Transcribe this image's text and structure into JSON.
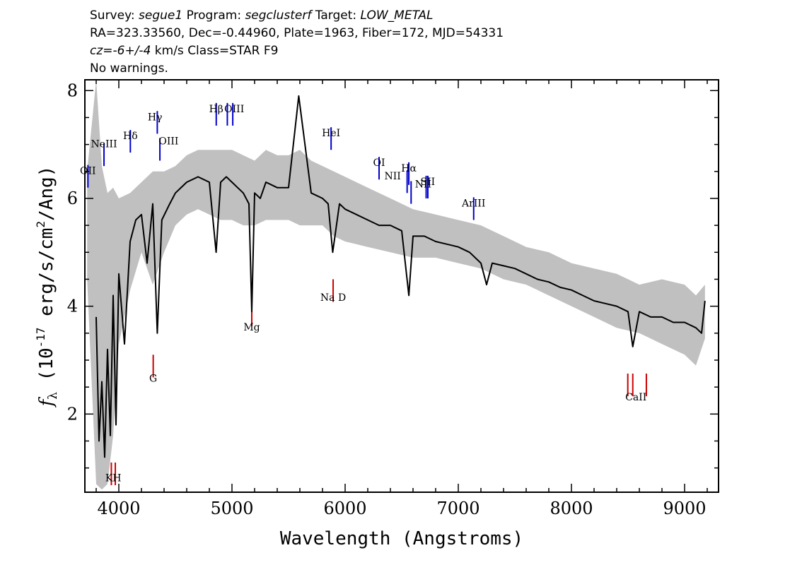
{
  "header": {
    "survey_label": "Survey: ",
    "survey": "segue1",
    "program_label": " Program: ",
    "program": "segclusterf",
    "target_label": " Target: ",
    "target": "LOW_METAL",
    "line2": "RA=323.33560, Dec=-0.44960, Plate=1963, Fiber=172, MJD=54331",
    "cz": "cz=-6+/-4",
    "line3_rest": " km/s Class=STAR F9",
    "line4": "No warnings."
  },
  "chart_data": {
    "type": "line",
    "xlabel": "Wavelength (Angstroms)",
    "ylabel_prefix": "f",
    "ylabel_sub": "λ",
    "ylabel_main": " (10",
    "ylabel_exp1": "-17",
    "ylabel_mid": " erg/s/cm",
    "ylabel_exp2": "2",
    "ylabel_end": "/Ang)",
    "xlim": [
      3700,
      9300
    ],
    "ylim": [
      0.55,
      8.2
    ],
    "xticks": [
      4000,
      5000,
      6000,
      7000,
      8000,
      9000
    ],
    "yticks": [
      2,
      4,
      6,
      8
    ],
    "colors": {
      "flux": "#000000",
      "error": "#c0c0c0",
      "emission": "#0000cc",
      "absorption": "#cc0000"
    },
    "series": [
      {
        "role": "flux",
        "x": [
          3800,
          3825,
          3850,
          3875,
          3900,
          3925,
          3950,
          3975,
          4000,
          4050,
          4100,
          4150,
          4200,
          4250,
          4300,
          4340,
          4380,
          4450,
          4500,
          4600,
          4700,
          4800,
          4860,
          4900,
          4950,
          5000,
          5050,
          5100,
          5150,
          5175,
          5200,
          5250,
          5300,
          5400,
          5500,
          5590,
          5700,
          5800,
          5850,
          5890,
          5950,
          6000,
          6100,
          6200,
          6300,
          6400,
          6500,
          6563,
          6600,
          6700,
          6800,
          6900,
          7000,
          7100,
          7200,
          7250,
          7300,
          7400,
          7500,
          7600,
          7700,
          7800,
          7900,
          8000,
          8100,
          8200,
          8300,
          8400,
          8500,
          8542,
          8600,
          8700,
          8800,
          8900,
          9000,
          9100,
          9150,
          9180
        ],
        "y": [
          3.8,
          1.5,
          2.6,
          1.2,
          3.2,
          1.6,
          4.2,
          1.8,
          4.6,
          3.3,
          5.2,
          5.6,
          5.7,
          4.8,
          5.9,
          3.5,
          5.6,
          5.9,
          6.1,
          6.3,
          6.4,
          6.3,
          5.0,
          6.3,
          6.4,
          6.3,
          6.2,
          6.1,
          5.9,
          3.9,
          6.1,
          6.0,
          6.3,
          6.2,
          6.2,
          7.9,
          6.1,
          6.0,
          5.9,
          5.0,
          5.9,
          5.8,
          5.7,
          5.6,
          5.5,
          5.5,
          5.4,
          4.2,
          5.3,
          5.3,
          5.2,
          5.15,
          5.1,
          5.0,
          4.8,
          4.4,
          4.8,
          4.75,
          4.7,
          4.6,
          4.5,
          4.45,
          4.35,
          4.3,
          4.2,
          4.1,
          4.05,
          4.0,
          3.9,
          3.25,
          3.9,
          3.8,
          3.8,
          3.7,
          3.7,
          3.6,
          3.5,
          4.1
        ]
      },
      {
        "role": "error",
        "x": [
          3720,
          3800,
          3850,
          3900,
          3950,
          4000,
          4100,
          4200,
          4300,
          4400,
          4500,
          4600,
          4700,
          4800,
          4900,
          5000,
          5100,
          5200,
          5300,
          5400,
          5500,
          5600,
          5700,
          5800,
          5900,
          6000,
          6200,
          6400,
          6600,
          6800,
          7000,
          7200,
          7400,
          7600,
          7800,
          8000,
          8200,
          8400,
          8600,
          8800,
          9000,
          9100,
          9180
        ],
        "y_low": [
          4.5,
          0.7,
          0.6,
          0.7,
          1.6,
          3.3,
          4.3,
          5.0,
          4.4,
          5.0,
          5.5,
          5.7,
          5.8,
          5.7,
          5.6,
          5.6,
          5.5,
          5.5,
          5.6,
          5.6,
          5.6,
          5.5,
          5.5,
          5.5,
          5.3,
          5.2,
          5.1,
          5.0,
          4.9,
          4.9,
          4.8,
          4.7,
          4.5,
          4.4,
          4.2,
          4.0,
          3.8,
          3.6,
          3.5,
          3.3,
          3.1,
          2.9,
          3.4
        ],
        "y_high": [
          6.5,
          8.2,
          6.6,
          6.1,
          6.2,
          6.0,
          6.1,
          6.3,
          6.5,
          6.5,
          6.6,
          6.8,
          6.9,
          6.9,
          6.9,
          6.9,
          6.8,
          6.7,
          6.9,
          6.8,
          6.8,
          6.9,
          6.7,
          6.6,
          6.5,
          6.4,
          6.2,
          6.0,
          5.8,
          5.7,
          5.6,
          5.5,
          5.3,
          5.1,
          5.0,
          4.8,
          4.7,
          4.6,
          4.4,
          4.5,
          4.4,
          4.2,
          4.4
        ]
      }
    ],
    "emission_lines": [
      {
        "label": "OII",
        "x": 3727,
        "y": 6.2
      },
      {
        "label": "NeIII",
        "x": 3869,
        "y": 6.6
      },
      {
        "label": "Hδ",
        "x": 4102,
        "y": 6.85
      },
      {
        "label": "Hγ",
        "x": 4340,
        "y": 7.2
      },
      {
        "label": "OIII",
        "x": 4363,
        "y": 6.7
      },
      {
        "label": "Hβ",
        "x": 4861,
        "y": 7.35
      },
      {
        "label": "OIII",
        "x": 4959,
        "y": 7.35
      },
      {
        "label": "OIII",
        "x": 5007,
        "y": 7.35
      },
      {
        "label": "HeI",
        "x": 5876,
        "y": 6.9
      },
      {
        "label": "OI",
        "x": 6300,
        "y": 6.35
      },
      {
        "label": "NII",
        "x": 6548,
        "y": 6.1
      },
      {
        "label": "Hα",
        "x": 6563,
        "y": 6.25
      },
      {
        "label": "NII",
        "x": 6583,
        "y": 5.9
      },
      {
        "label": "SII",
        "x": 6716,
        "y": 6.0
      },
      {
        "label": "SII",
        "x": 6731,
        "y": 6.0
      },
      {
        "label": "ArIII",
        "x": 7136,
        "y": 5.6
      }
    ],
    "absorption_lines": [
      {
        "label": "KH",
        "x": 3934,
        "y": 1.1
      },
      {
        "label": "KH",
        "x": 3969,
        "y": 1.1
      },
      {
        "label": "G",
        "x": 4304,
        "y": 3.1
      },
      {
        "label": "Mg",
        "x": 5175,
        "y": 4.05
      },
      {
        "label": "Na D",
        "x": 5894,
        "y": 4.5
      },
      {
        "label": "CaII",
        "x": 8498,
        "y": 2.75
      },
      {
        "label": "CaII",
        "x": 8542,
        "y": 2.75
      },
      {
        "label": "CaII",
        "x": 8662,
        "y": 2.75
      }
    ],
    "emission_labels": [
      {
        "text": "OII",
        "x": 3727,
        "y": 6.45
      },
      {
        "text": "NeIII",
        "x": 3869,
        "y": 6.95
      },
      {
        "text": "Hδ",
        "x": 4102,
        "y": 7.1
      },
      {
        "text": "Hγ",
        "x": 4320,
        "y": 7.45
      },
      {
        "text": "OIII",
        "x": 4440,
        "y": 7.0
      },
      {
        "text": "Hβ",
        "x": 4861,
        "y": 7.6
      },
      {
        "text": "OIII",
        "x": 5020,
        "y": 7.6
      },
      {
        "text": "HeI",
        "x": 5876,
        "y": 7.15
      },
      {
        "text": "OI",
        "x": 6300,
        "y": 6.6
      },
      {
        "text": "NII",
        "x": 6420,
        "y": 6.35
      },
      {
        "text": "Hα",
        "x": 6563,
        "y": 6.5
      },
      {
        "text": "NII",
        "x": 6690,
        "y": 6.2
      },
      {
        "text": "SII",
        "x": 6730,
        "y": 6.25
      },
      {
        "text": "ArIII",
        "x": 7136,
        "y": 5.85
      }
    ],
    "absorption_labels": [
      {
        "text": "KH",
        "x": 3951,
        "y": 0.75
      },
      {
        "text": "G",
        "x": 4304,
        "y": 2.6
      },
      {
        "text": "Mg",
        "x": 5175,
        "y": 3.55
      },
      {
        "text": "Na D",
        "x": 5894,
        "y": 4.1
      },
      {
        "text": "CaII",
        "x": 8570,
        "y": 2.25
      }
    ]
  }
}
